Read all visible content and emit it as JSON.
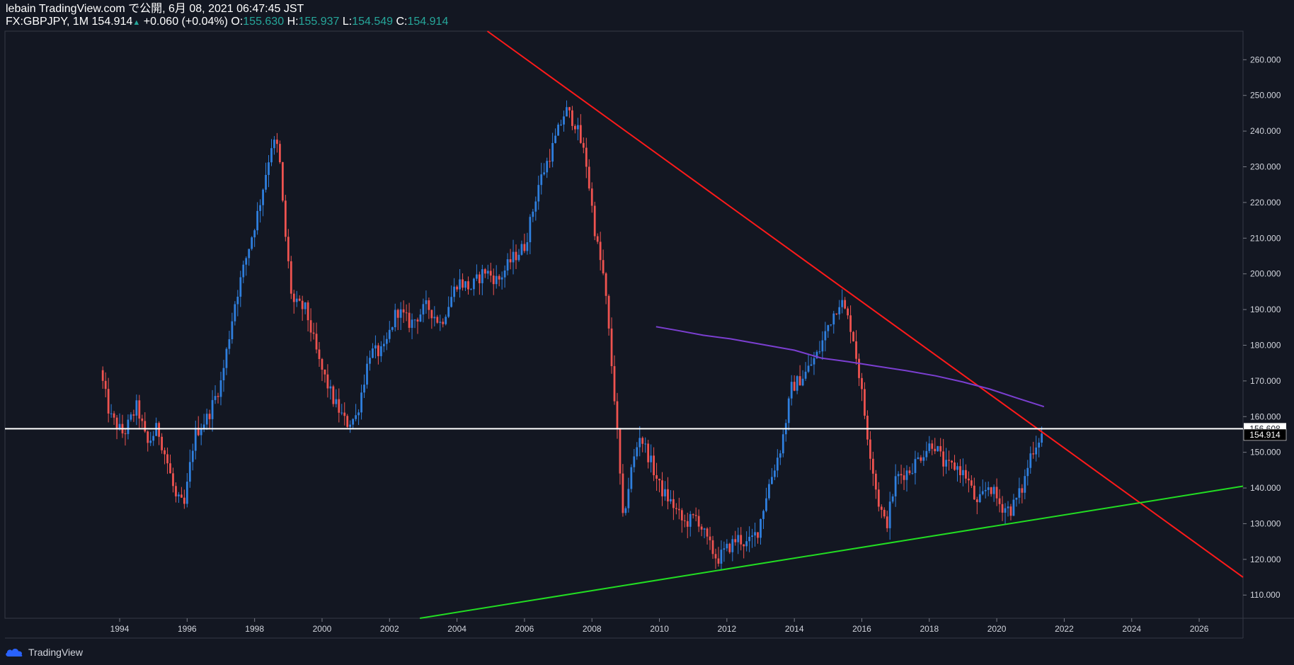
{
  "header": {
    "line1": "lebain TradingView.com で公開, 6月 08, 2021 06:47:45 JST",
    "symbol": "FX:GBPJPY, 1M",
    "last": "154.914",
    "arrow": "▲",
    "change": "+0.060 (+0.04%)",
    "o_label": "O:",
    "o_value": "155.630",
    "h_label": "H:",
    "h_value": "155.937",
    "l_label": "L:",
    "l_value": "154.549",
    "c_label": "C:",
    "c_value": "154.914"
  },
  "brand": {
    "name": "TradingView",
    "icon": "tradingview-cloud-icon"
  },
  "colors": {
    "background": "#131722",
    "up_candle": "#2f7fde",
    "down_candle": "#ef5350",
    "resistance_line": "#ff1a1a",
    "support_line": "#22dd22",
    "moving_average": "#7b3fd1",
    "horizontal_line": "#ffffff",
    "axis_text": "#d1d4dc"
  },
  "chart_data": {
    "type": "candlestick",
    "symbol": "FX:GBPJPY",
    "interval": "1M",
    "xlim": [
      1990.6,
      2027.3
    ],
    "ylim": [
      103.5,
      268
    ],
    "x_ticks": [
      1994,
      1996,
      1998,
      2000,
      2002,
      2004,
      2006,
      2008,
      2010,
      2012,
      2014,
      2016,
      2018,
      2020,
      2022,
      2024,
      2026
    ],
    "x_tick_labels": [
      "1994",
      "1996",
      "1998",
      "2000",
      "2002",
      "2004",
      "2006",
      "2008",
      "2010",
      "2012",
      "2014",
      "2016",
      "2018",
      "2020",
      "2022",
      "2024",
      "2026"
    ],
    "y_ticks": [
      110,
      120,
      130,
      140,
      150,
      160,
      170,
      180,
      190,
      200,
      210,
      220,
      230,
      240,
      250,
      260
    ],
    "y_tick_labels": [
      "110.000",
      "120.000",
      "130.000",
      "140.000",
      "150.000",
      "160.000",
      "170.000",
      "180.000",
      "190.000",
      "200.000",
      "210.000",
      "220.000",
      "230.000",
      "240.000",
      "250.000",
      "260.000"
    ],
    "price_tags": [
      {
        "value": 156.608,
        "label": "156.608",
        "style": "light"
      },
      {
        "value": 154.914,
        "label": "154.914",
        "style": "dark"
      }
    ],
    "price_path": [
      [
        1993.5,
        173
      ],
      [
        1993.8,
        160
      ],
      [
        1994.2,
        155
      ],
      [
        1994.6,
        163
      ],
      [
        1994.9,
        152
      ],
      [
        1995.2,
        157
      ],
      [
        1995.5,
        147
      ],
      [
        1995.75,
        137
      ],
      [
        1996.0,
        135
      ],
      [
        1996.3,
        155
      ],
      [
        1996.7,
        160
      ],
      [
        1997.1,
        170
      ],
      [
        1997.5,
        192
      ],
      [
        1997.9,
        207
      ],
      [
        1998.2,
        218
      ],
      [
        1998.6,
        237
      ],
      [
        1998.8,
        235
      ],
      [
        1998.95,
        215
      ],
      [
        1999.2,
        192
      ],
      [
        1999.6,
        190
      ],
      [
        2000.0,
        175
      ],
      [
        2000.4,
        165
      ],
      [
        2000.8,
        158
      ],
      [
        2001.1,
        160
      ],
      [
        2001.5,
        178
      ],
      [
        2001.9,
        178
      ],
      [
        2002.3,
        190
      ],
      [
        2002.7,
        186
      ],
      [
        2003.2,
        191
      ],
      [
        2003.6,
        186
      ],
      [
        2004.1,
        198
      ],
      [
        2004.5,
        196
      ],
      [
        2004.9,
        201
      ],
      [
        2005.3,
        198
      ],
      [
        2005.7,
        204
      ],
      [
        2006.1,
        208
      ],
      [
        2006.5,
        225
      ],
      [
        2006.9,
        235
      ],
      [
        2007.3,
        246
      ],
      [
        2007.6,
        242
      ],
      [
        2007.9,
        232
      ],
      [
        2008.2,
        210
      ],
      [
        2008.45,
        198
      ],
      [
        2008.8,
        160
      ],
      [
        2009.0,
        131
      ],
      [
        2009.25,
        145
      ],
      [
        2009.5,
        155
      ],
      [
        2009.8,
        148
      ],
      [
        2010.1,
        140
      ],
      [
        2010.5,
        135
      ],
      [
        2010.8,
        130
      ],
      [
        2011.2,
        132
      ],
      [
        2011.5,
        125
      ],
      [
        2011.8,
        120
      ],
      [
        2012.1,
        123
      ],
      [
        2012.4,
        126
      ],
      [
        2012.7,
        124
      ],
      [
        2013.0,
        128
      ],
      [
        2013.3,
        140
      ],
      [
        2013.7,
        152
      ],
      [
        2014.0,
        168
      ],
      [
        2014.4,
        172
      ],
      [
        2014.8,
        178
      ],
      [
        2015.1,
        186
      ],
      [
        2015.45,
        193
      ],
      [
        2015.8,
        184
      ],
      [
        2016.0,
        172
      ],
      [
        2016.25,
        155
      ],
      [
        2016.55,
        137
      ],
      [
        2016.8,
        129
      ],
      [
        2017.1,
        143
      ],
      [
        2017.5,
        145
      ],
      [
        2017.9,
        150
      ],
      [
        2018.2,
        153
      ],
      [
        2018.55,
        146
      ],
      [
        2018.9,
        146
      ],
      [
        2019.2,
        143
      ],
      [
        2019.5,
        135
      ],
      [
        2019.85,
        141
      ],
      [
        2020.2,
        135
      ],
      [
        2020.5,
        134
      ],
      [
        2020.85,
        140
      ],
      [
        2021.1,
        150
      ],
      [
        2021.4,
        155
      ]
    ],
    "annotations": [
      {
        "type": "trendline",
        "name": "resistance",
        "from": [
          2004.9,
          268
        ],
        "to": [
          2027.3,
          115
        ]
      },
      {
        "type": "trendline",
        "name": "support",
        "from": [
          2002.9,
          103.5
        ],
        "to": [
          2027.3,
          140.5
        ]
      },
      {
        "type": "horizontal",
        "name": "level",
        "y": 156.608
      },
      {
        "type": "moving_average",
        "name": "ma",
        "points": [
          [
            2009.9,
            185.2
          ],
          [
            2010.5,
            184.2
          ],
          [
            2011.3,
            182.8
          ],
          [
            2012.1,
            181.8
          ],
          [
            2013.0,
            180.3
          ],
          [
            2014.0,
            178.6
          ],
          [
            2014.8,
            176.4
          ],
          [
            2015.6,
            175.4
          ],
          [
            2016.4,
            174.2
          ],
          [
            2017.3,
            172.9
          ],
          [
            2018.2,
            171.4
          ],
          [
            2019.0,
            169.7
          ],
          [
            2019.8,
            167.7
          ],
          [
            2020.6,
            165.2
          ],
          [
            2021.4,
            162.8
          ]
        ]
      }
    ]
  }
}
